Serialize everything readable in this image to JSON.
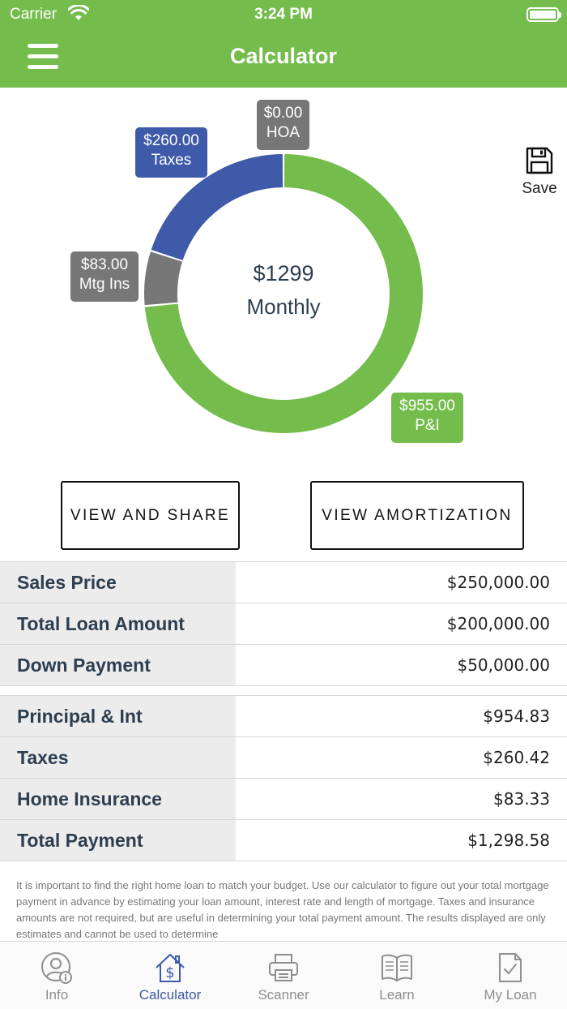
{
  "status_bar": {
    "carrier": "Carrier",
    "time": "3:24 PM"
  },
  "header": {
    "title": "Calculator"
  },
  "colors": {
    "brand_green": "#74bd4c",
    "taxes_blue": "#3e5aa8",
    "neutral_gray": "#777777"
  },
  "chart_data": {
    "type": "pie",
    "style": "donut",
    "center_value": "$1299",
    "center_label": "Monthly",
    "slices": [
      {
        "name": "P&I",
        "value": 955.0,
        "display": "$955.00",
        "color": "#74bd4c"
      },
      {
        "name": "Mtg Ins",
        "value": 83.0,
        "display": "$83.00",
        "color": "#777777"
      },
      {
        "name": "Taxes",
        "value": 260.0,
        "display": "$260.00",
        "color": "#3e5aa8"
      },
      {
        "name": "HOA",
        "value": 0.0,
        "display": "$0.00",
        "color": "#777777"
      }
    ]
  },
  "save": {
    "label": "Save",
    "icon": "save-icon"
  },
  "actions": {
    "share_label": "VIEW AND SHARE",
    "amortization_label": "VIEW AMORTIZATION"
  },
  "loan_table": [
    {
      "label": "Sales Price",
      "value": "$250,000.00"
    },
    {
      "label": "Total Loan Amount",
      "value": "$200,000.00"
    },
    {
      "label": "Down Payment",
      "value": "$50,000.00"
    }
  ],
  "payment_table": [
    {
      "label": "Principal & Int",
      "value": "$954.83"
    },
    {
      "label": "Taxes",
      "value": "$260.42"
    },
    {
      "label": "Home Insurance",
      "value": "$83.33"
    },
    {
      "label": "Total Payment",
      "value": "$1,298.58"
    }
  ],
  "disclaimer": "It is important to find the right home loan to match your budget. Use our calculator to figure out your total mortgage payment in advance by estimating your loan amount, interest rate and length of mortgage. Taxes and insurance amounts are not required, but are useful in determining your total payment amount. The results displayed are only estimates and cannot be used to determine",
  "tabs": [
    {
      "label": "Info",
      "icon": "user-info-icon"
    },
    {
      "label": "Calculator",
      "icon": "house-dollar-icon",
      "active": true
    },
    {
      "label": "Scanner",
      "icon": "printer-icon"
    },
    {
      "label": "Learn",
      "icon": "book-icon"
    },
    {
      "label": "My Loan",
      "icon": "document-check-icon"
    }
  ]
}
